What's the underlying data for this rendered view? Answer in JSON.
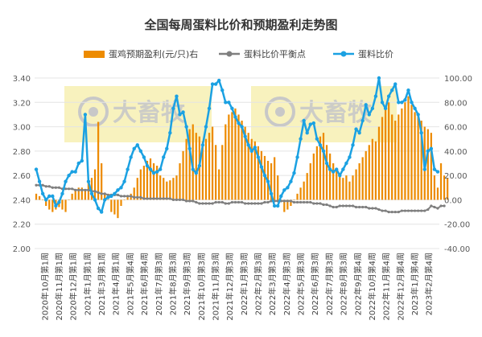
{
  "chart_data": {
    "type": "bar+line",
    "title": "全国每周蛋料比价和预期盈利走势图",
    "legend": {
      "position": "top",
      "items": [
        {
          "name": "蛋鸡预期盈利(元/只)右",
          "marker": "bar",
          "color": "#ED8B00"
        },
        {
          "name": "蛋料比价平衡点",
          "marker": "line-dot",
          "color": "#7F7F7F"
        },
        {
          "name": "蛋料比价",
          "marker": "line-dot",
          "color": "#1BA1E2"
        }
      ]
    },
    "watermark": "大畜牧",
    "left_axis": {
      "min": 2.0,
      "max": 3.4,
      "step": 0.2,
      "ticks": [
        "2.00",
        "2.20",
        "2.40",
        "2.60",
        "2.80",
        "3.00",
        "3.20",
        "3.40"
      ]
    },
    "right_axis": {
      "min": -40,
      "max": 100,
      "step": 20,
      "ticks": [
        "-40.00",
        "-20.00",
        "0.00",
        "20.00",
        "40.00",
        "60.00",
        "80.00",
        "100.00"
      ]
    },
    "x_labels": [
      "2020年10月第1周",
      "2020年11月第1周",
      "2020年12月第1周",
      "2021年1月第1周",
      "2021年3月第1周",
      "2021年4月第1周",
      "2021年5月第4周",
      "2021年6月第4周",
      "2021年7月第3周",
      "2021年8月第3周",
      "2021年9月第3周",
      "2021年10月第3周",
      "2021年11月第3周",
      "2021年12月第3周",
      "2022年1月第3周",
      "2022年2月第3周",
      "2022年3月第3周",
      "2022年4月第3周",
      "2022年5月第3周",
      "2022年6月第3周",
      "2022年7月第3周",
      "2022年8月第3周",
      "2022年9月第4周",
      "2022年10月第4周",
      "2022年11月第4周",
      "2022年12月第4周",
      "2023年1月第4周",
      "2023年2月第4周"
    ],
    "series": [
      {
        "name": "蛋鸡预期盈利(元/只)右",
        "axis": "right",
        "values": [
          5,
          3,
          0,
          -5,
          -8,
          -10,
          -8,
          -6,
          -8,
          -10,
          0,
          5,
          8,
          10,
          10,
          8,
          14,
          18,
          25,
          64,
          30,
          5,
          0,
          -10,
          -12,
          -15,
          -5,
          0,
          3,
          5,
          10,
          18,
          25,
          28,
          32,
          34,
          30,
          28,
          20,
          18,
          15,
          16,
          18,
          20,
          30,
          40,
          50,
          58,
          62,
          55,
          52,
          48,
          50,
          55,
          60,
          45,
          25,
          45,
          62,
          70,
          72,
          75,
          70,
          65,
          60,
          55,
          50,
          48,
          44,
          40,
          36,
          32,
          30,
          35,
          20,
          0,
          -10,
          -8,
          -5,
          0,
          5,
          10,
          15,
          22,
          30,
          38,
          44,
          52,
          55,
          45,
          38,
          30,
          25,
          22,
          18,
          20,
          15,
          20,
          25,
          30,
          35,
          40,
          45,
          50,
          48,
          60,
          68,
          75,
          80,
          70,
          65,
          70,
          75,
          80,
          85,
          78,
          72,
          70,
          65,
          60,
          58,
          55,
          20,
          10,
          30,
          20,
          18
        ]
      },
      {
        "name": "蛋料比价平衡点",
        "axis": "left",
        "values": [
          2.52,
          2.52,
          2.52,
          2.51,
          2.51,
          2.5,
          2.5,
          2.5,
          2.49,
          2.49,
          2.49,
          2.49,
          2.48,
          2.48,
          2.48,
          2.48,
          2.48,
          2.47,
          2.47,
          2.46,
          2.45,
          2.45,
          2.44,
          2.44,
          2.44,
          2.44,
          2.43,
          2.43,
          2.43,
          2.43,
          2.42,
          2.42,
          2.42,
          2.41,
          2.41,
          2.41,
          2.41,
          2.41,
          2.41,
          2.41,
          2.41,
          2.41,
          2.4,
          2.4,
          2.4,
          2.4,
          2.39,
          2.39,
          2.39,
          2.38,
          2.37,
          2.37,
          2.37,
          2.37,
          2.37,
          2.38,
          2.38,
          2.38,
          2.37,
          2.37,
          2.38,
          2.38,
          2.38,
          2.38,
          2.37,
          2.37,
          2.37,
          2.37,
          2.37,
          2.37,
          2.38,
          2.38,
          2.39,
          2.39,
          2.39,
          2.39,
          2.39,
          2.39,
          2.39,
          2.38,
          2.38,
          2.38,
          2.38,
          2.38,
          2.38,
          2.37,
          2.37,
          2.37,
          2.36,
          2.36,
          2.35,
          2.34,
          2.34,
          2.35,
          2.35,
          2.35,
          2.35,
          2.35,
          2.34,
          2.34,
          2.34,
          2.34,
          2.33,
          2.33,
          2.33,
          2.32,
          2.31,
          2.31,
          2.3,
          2.3,
          2.3,
          2.3,
          2.31,
          2.31,
          2.31,
          2.31,
          2.31,
          2.31,
          2.31,
          2.31,
          2.32,
          2.35,
          2.34,
          2.33,
          2.35,
          2.35
        ]
      },
      {
        "name": "蛋料比价",
        "axis": "left",
        "values": [
          2.65,
          2.55,
          2.45,
          2.4,
          2.43,
          2.43,
          2.35,
          2.38,
          2.45,
          2.55,
          2.6,
          2.63,
          2.63,
          2.7,
          2.72,
          3.1,
          2.55,
          2.45,
          2.4,
          2.33,
          2.3,
          2.4,
          2.42,
          2.43,
          2.45,
          2.48,
          2.5,
          2.55,
          2.65,
          2.75,
          2.82,
          2.85,
          2.8,
          2.75,
          2.68,
          2.65,
          2.62,
          2.63,
          2.65,
          2.75,
          2.82,
          2.95,
          3.15,
          3.25,
          3.1,
          3.12,
          3.0,
          2.82,
          2.65,
          2.62,
          2.68,
          2.85,
          3.0,
          3.15,
          3.35,
          3.35,
          3.38,
          3.3,
          3.2,
          3.2,
          3.15,
          3.08,
          3.03,
          3.0,
          2.92,
          2.85,
          2.8,
          2.83,
          2.75,
          2.67,
          2.6,
          2.55,
          2.45,
          2.35,
          2.35,
          2.43,
          2.48,
          2.5,
          2.55,
          2.62,
          2.75,
          2.9,
          3.05,
          2.95,
          3.02,
          3.03,
          2.9,
          2.85,
          2.8,
          2.7,
          2.65,
          2.63,
          2.65,
          2.6,
          2.65,
          2.7,
          2.75,
          2.85,
          2.98,
          2.95,
          3.05,
          3.18,
          3.1,
          3.15,
          3.25,
          3.4,
          3.2,
          3.15,
          3.25,
          3.3,
          3.35,
          3.2,
          3.2,
          3.22,
          3.3,
          3.2,
          3.15,
          3.1,
          2.95,
          2.65,
          2.8,
          2.82,
          2.65,
          2.63
        ]
      }
    ]
  }
}
